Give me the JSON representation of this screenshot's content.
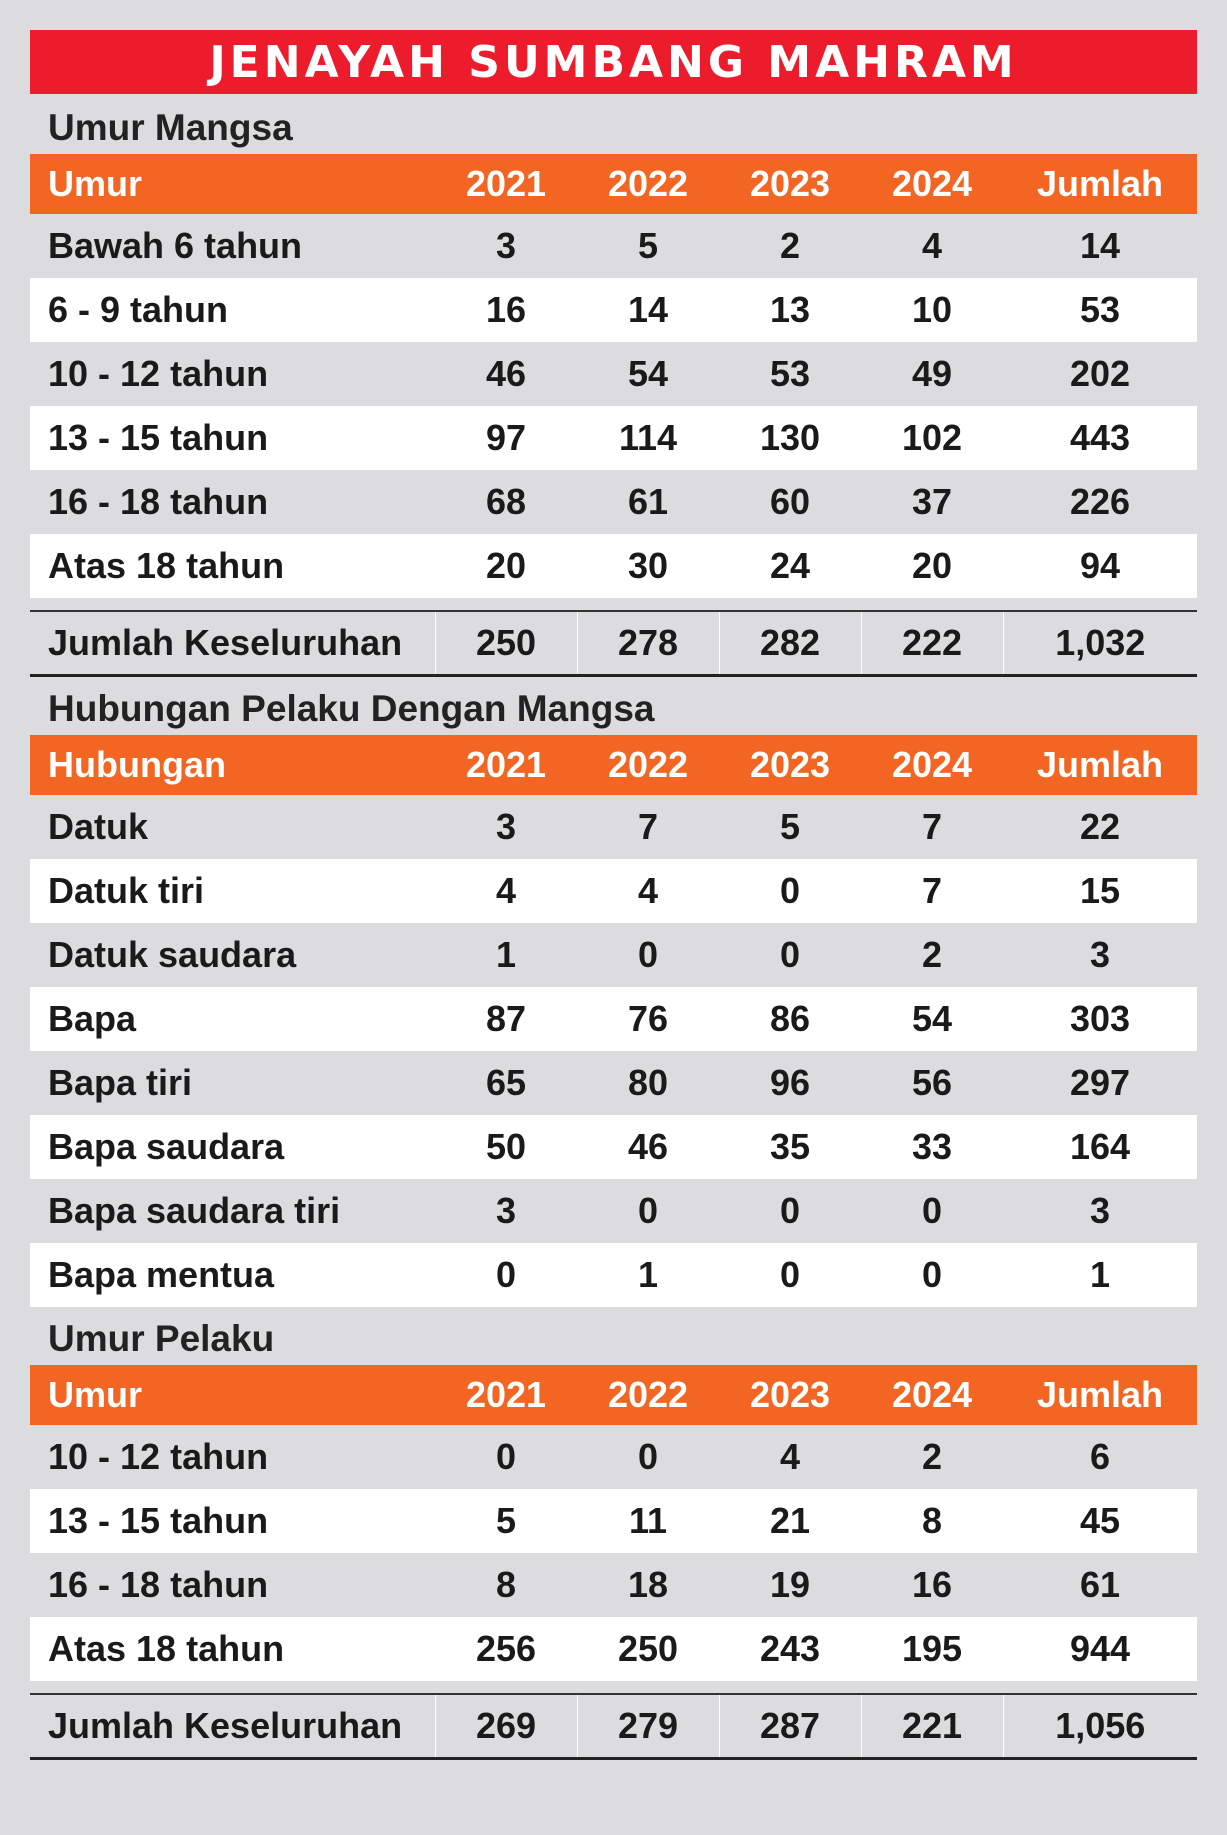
{
  "title": "JENAYAH SUMBANG MAHRAM",
  "sections": [
    {
      "title": "Umur Mangsa",
      "headers": [
        "Umur",
        "2021",
        "2022",
        "2023",
        "2024",
        "Jumlah"
      ],
      "rows": [
        [
          "Bawah 6 tahun",
          "3",
          "5",
          "2",
          "4",
          "14"
        ],
        [
          "6 - 9 tahun",
          "16",
          "14",
          "13",
          "10",
          "53"
        ],
        [
          "10 - 12 tahun",
          "46",
          "54",
          "53",
          "49",
          "202"
        ],
        [
          "13 - 15 tahun",
          "97",
          "114",
          "130",
          "102",
          "443"
        ],
        [
          "16 - 18 tahun",
          "68",
          "61",
          "60",
          "37",
          "226"
        ],
        [
          "Atas 18 tahun",
          "20",
          "30",
          "24",
          "20",
          "94"
        ]
      ],
      "total": [
        "Jumlah Keseluruhan",
        "250",
        "278",
        "282",
        "222",
        "1,032"
      ]
    },
    {
      "title": "Hubungan Pelaku Dengan Mangsa",
      "headers": [
        "Hubungan",
        "2021",
        "2022",
        "2023",
        "2024",
        "Jumlah"
      ],
      "rows": [
        [
          "Datuk",
          "3",
          "7",
          "5",
          "7",
          "22"
        ],
        [
          "Datuk tiri",
          "4",
          "4",
          "0",
          "7",
          "15"
        ],
        [
          "Datuk saudara",
          "1",
          "0",
          "0",
          "2",
          "3"
        ],
        [
          "Bapa",
          "87",
          "76",
          "86",
          "54",
          "303"
        ],
        [
          "Bapa tiri",
          "65",
          "80",
          "96",
          "56",
          "297"
        ],
        [
          "Bapa saudara",
          "50",
          "46",
          "35",
          "33",
          "164"
        ],
        [
          "Bapa saudara tiri",
          "3",
          "0",
          "0",
          "0",
          "3"
        ],
        [
          "Bapa mentua",
          "0",
          "1",
          "0",
          "0",
          "1"
        ]
      ]
    },
    {
      "title": "Umur Pelaku",
      "headers": [
        "Umur",
        "2021",
        "2022",
        "2023",
        "2024",
        "Jumlah"
      ],
      "rows": [
        [
          "10 - 12 tahun",
          "0",
          "0",
          "4",
          "2",
          "6"
        ],
        [
          "13 - 15 tahun",
          "5",
          "11",
          "21",
          "8",
          "45"
        ],
        [
          "16 - 18 tahun",
          "8",
          "18",
          "19",
          "16",
          "61"
        ],
        [
          "Atas 18 tahun",
          "256",
          "250",
          "243",
          "195",
          "944"
        ]
      ],
      "total": [
        "Jumlah Keseluruhan",
        "269",
        "279",
        "287",
        "221",
        "1,056"
      ]
    }
  ],
  "colors": {
    "banner": "#ec1c2d",
    "header": "#f26522",
    "background": "#dcdcde",
    "row_alt": "#ffffff"
  }
}
